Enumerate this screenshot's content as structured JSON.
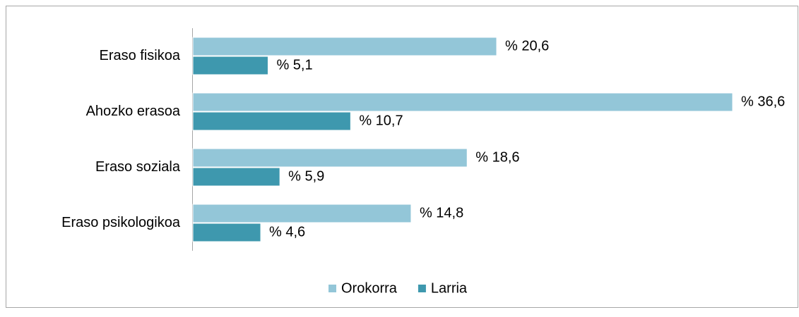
{
  "chart_data": {
    "type": "bar",
    "orientation": "horizontal",
    "categories": [
      "Eraso fisikoa",
      "Ahozko erasoa",
      "Eraso soziala",
      "Eraso psikologikoa"
    ],
    "series": [
      {
        "name": "Orokorra",
        "color": "#93c6d8",
        "values": [
          20.6,
          36.6,
          18.6,
          14.8
        ],
        "value_labels": [
          "% 20,6",
          "% 36,6",
          "% 18,6",
          "% 14,8"
        ]
      },
      {
        "name": "Larria",
        "color": "#3e98ae",
        "values": [
          5.1,
          10.7,
          5.9,
          4.6
        ],
        "value_labels": [
          "% 5,1",
          "% 10,7",
          "% 5,9",
          "% 4,6"
        ]
      }
    ],
    "legend": "bottom"
  }
}
